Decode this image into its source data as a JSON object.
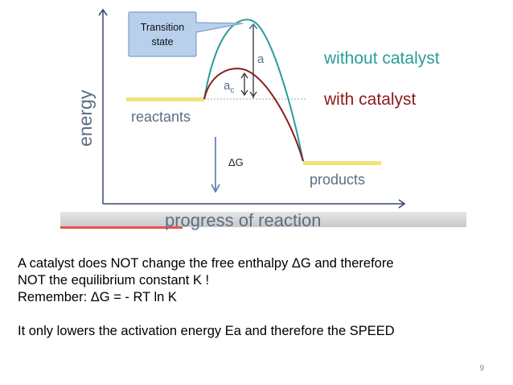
{
  "diagram": {
    "callout": {
      "line1": "Transition",
      "line2": "state"
    },
    "axis": {
      "y_label": "energy",
      "x_label": "progress of reaction"
    },
    "labels": {
      "a": "a",
      "ac_main": "a",
      "ac_sub": "c",
      "delta_g": "ΔG",
      "reactants": "reactants",
      "products": "products",
      "without_catalyst": "without catalyst",
      "with_catalyst": "with catalyst"
    },
    "colors": {
      "without_catalyst": "#2a9d9a",
      "with_catalyst": "#8b1a1a",
      "energy_level": "#f3e27a",
      "arrow": "#5577aa",
      "axis": "#3a4a6a",
      "callout_fill": "#b8d0ec",
      "callout_border": "#7f9fc8",
      "label_text": "#5c6e85",
      "footer_bar": "#d6d6d6",
      "footer_accent": "#e8534c"
    }
  },
  "text": {
    "lines": [
      "A catalyst does NOT change the free enthalpy ΔG and therefore",
      "NOT the equilibrium constant K !",
      "Remember: ΔG = - RT ln K",
      "",
      "It only lowers the activation energy Ea and therefore the SPEED"
    ]
  },
  "page_number": "9"
}
